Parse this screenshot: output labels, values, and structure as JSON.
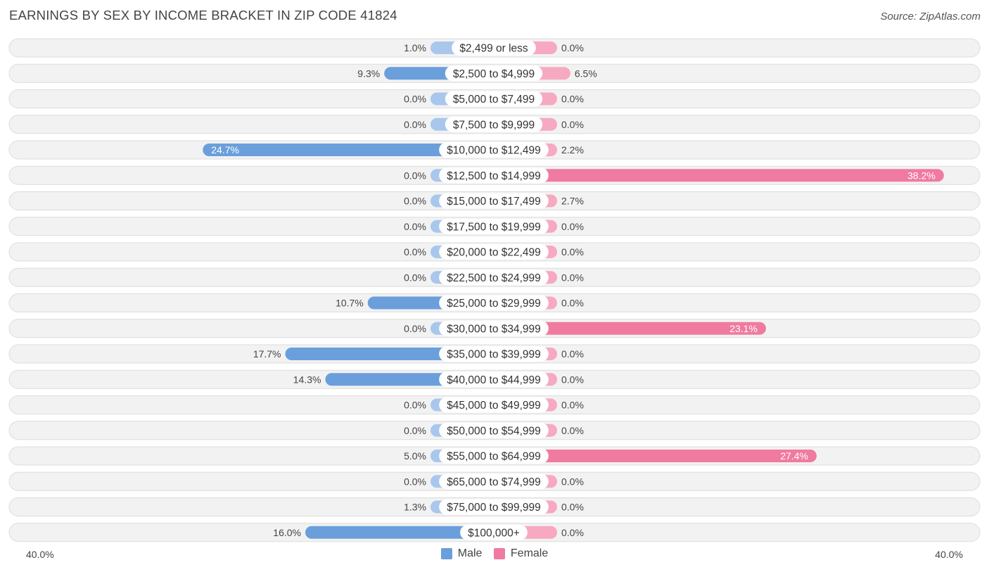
{
  "header": {
    "title": "EARNINGS BY SEX BY INCOME BRACKET IN ZIP CODE 41824",
    "source": "Source: ZipAtlas.com"
  },
  "colors": {
    "male_strong": "#6a9fdc",
    "male_light": "#a9c7ec",
    "female_strong": "#f07aa0",
    "female_light": "#f6a9c0"
  },
  "legend": {
    "male": "Male",
    "female": "Female"
  },
  "axis": {
    "left_label": "40.0%",
    "right_label": "40.0%"
  },
  "chart_data": {
    "type": "bar",
    "orientation": "horizontal-diverging",
    "title": "EARNINGS BY SEX BY INCOME BRACKET IN ZIP CODE 41824",
    "xlim": [
      -40,
      40
    ],
    "categories": [
      "$2,499 or less",
      "$2,500 to $4,999",
      "$5,000 to $7,499",
      "$7,500 to $9,999",
      "$10,000 to $12,499",
      "$12,500 to $14,999",
      "$15,000 to $17,499",
      "$17,500 to $19,999",
      "$20,000 to $22,499",
      "$22,500 to $24,999",
      "$25,000 to $29,999",
      "$30,000 to $34,999",
      "$35,000 to $39,999",
      "$40,000 to $44,999",
      "$45,000 to $49,999",
      "$50,000 to $54,999",
      "$55,000 to $64,999",
      "$65,000 to $74,999",
      "$75,000 to $99,999",
      "$100,000+"
    ],
    "series": [
      {
        "name": "Male",
        "values": [
          1.0,
          9.3,
          0.0,
          0.0,
          24.7,
          0.0,
          0.0,
          0.0,
          0.0,
          0.0,
          10.7,
          0.0,
          17.7,
          14.3,
          0.0,
          0.0,
          5.0,
          0.0,
          1.3,
          16.0
        ],
        "labels": [
          "1.0%",
          "9.3%",
          "0.0%",
          "0.0%",
          "24.7%",
          "0.0%",
          "0.0%",
          "0.0%",
          "0.0%",
          "0.0%",
          "10.7%",
          "0.0%",
          "17.7%",
          "14.3%",
          "0.0%",
          "0.0%",
          "5.0%",
          "0.0%",
          "1.3%",
          "16.0%"
        ]
      },
      {
        "name": "Female",
        "values": [
          0.0,
          6.5,
          0.0,
          0.0,
          2.2,
          38.2,
          2.7,
          0.0,
          0.0,
          0.0,
          0.0,
          23.1,
          0.0,
          0.0,
          0.0,
          0.0,
          27.4,
          0.0,
          0.0,
          0.0
        ],
        "labels": [
          "0.0%",
          "6.5%",
          "0.0%",
          "0.0%",
          "2.2%",
          "38.2%",
          "2.7%",
          "0.0%",
          "0.0%",
          "0.0%",
          "0.0%",
          "23.1%",
          "0.0%",
          "0.0%",
          "0.0%",
          "0.0%",
          "27.4%",
          "0.0%",
          "0.0%",
          "0.0%"
        ]
      }
    ],
    "legend_position": "bottom-center"
  }
}
